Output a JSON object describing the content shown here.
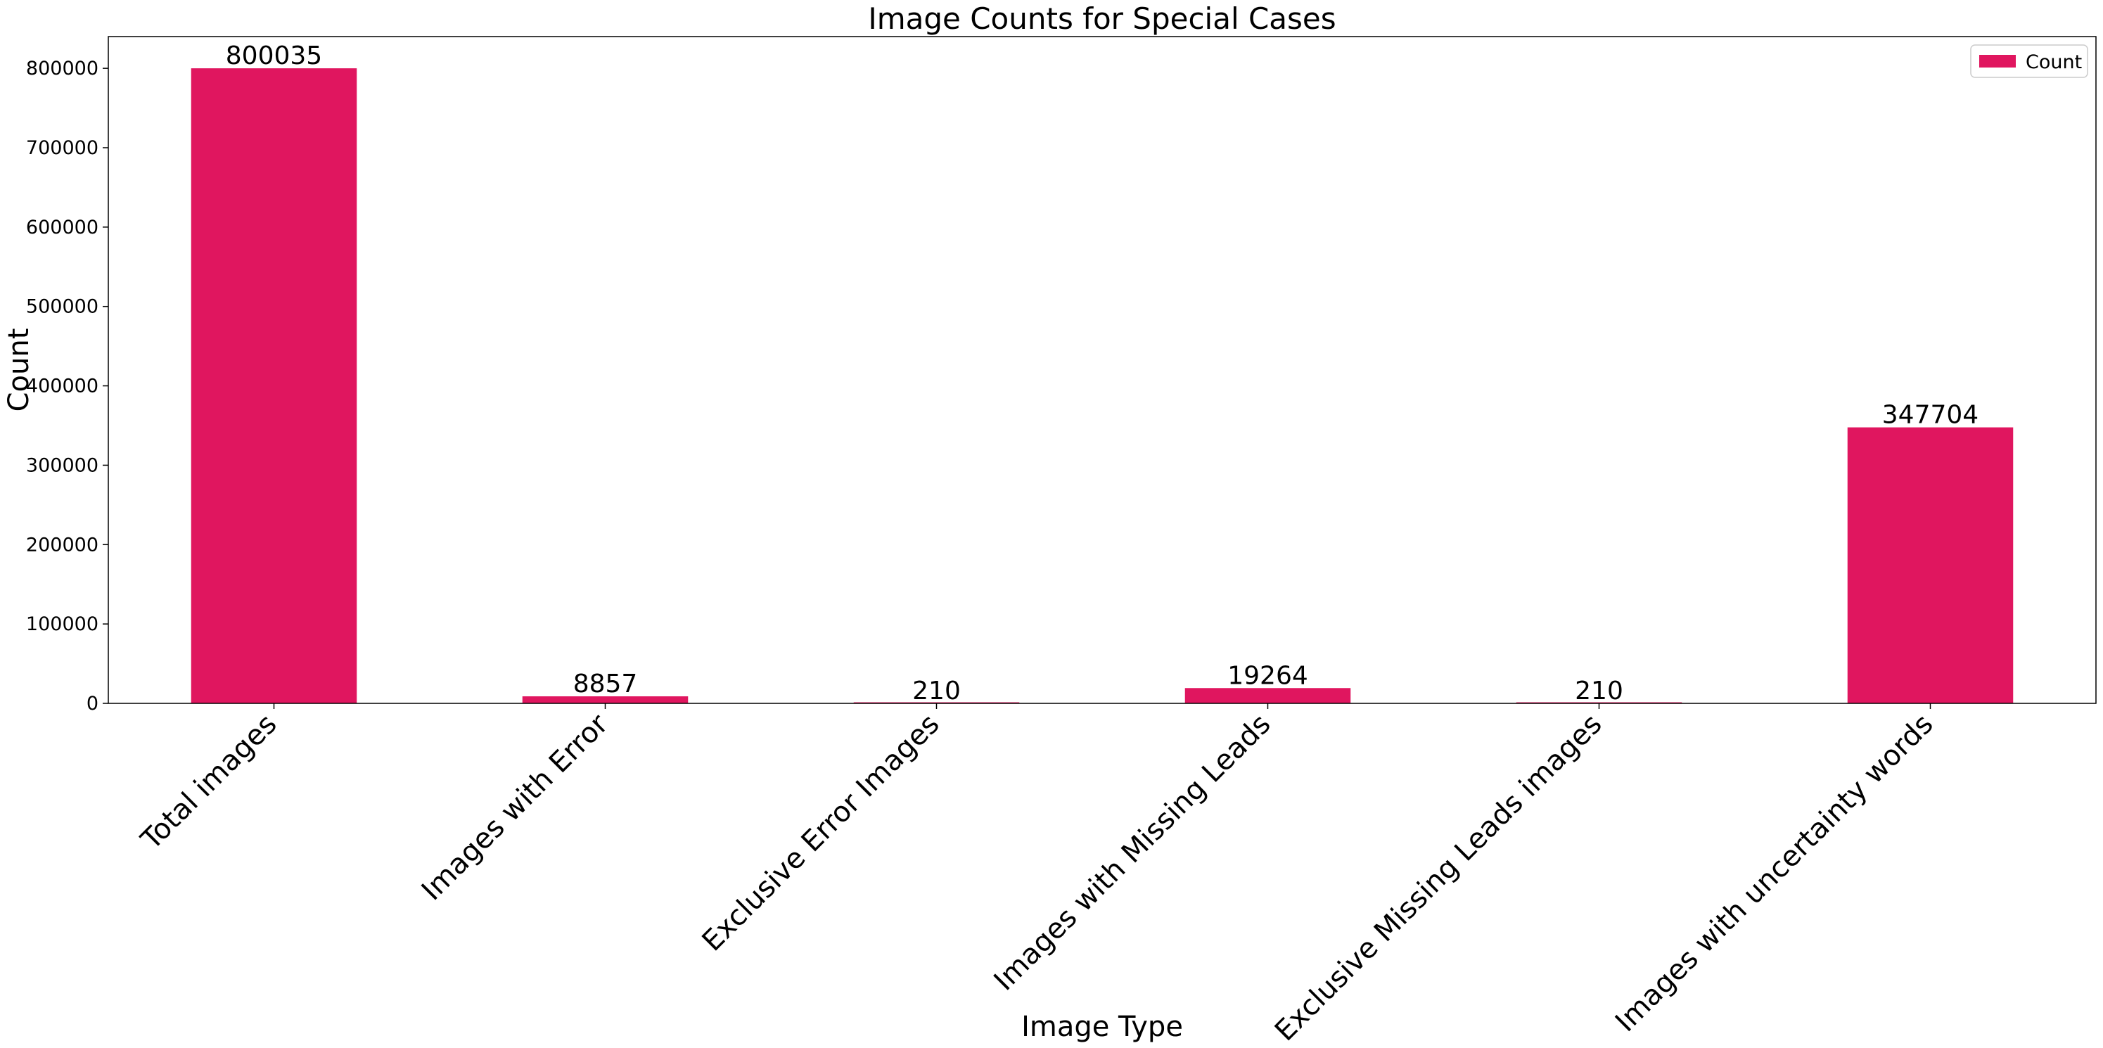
{
  "chart_data": {
    "type": "bar",
    "title": "Image Counts for Special Cases",
    "xlabel": "Image Type",
    "ylabel": "Count",
    "categories": [
      "Total images",
      "Images with Error",
      "Exclusive Error Images",
      "Images with Missing Leads",
      "Exclusive Missing Leads images",
      "Images with uncertainty words"
    ],
    "series": [
      {
        "name": "Count",
        "values": [
          800035,
          8857,
          210,
          19264,
          210,
          347704
        ],
        "color": "#e0165f"
      }
    ],
    "ylim": [
      0,
      840000
    ],
    "yticks": [
      0,
      100000,
      200000,
      300000,
      400000,
      500000,
      600000,
      700000,
      800000
    ],
    "grid": false,
    "legend": {
      "position": "top-right",
      "entries": [
        "Count"
      ]
    }
  }
}
